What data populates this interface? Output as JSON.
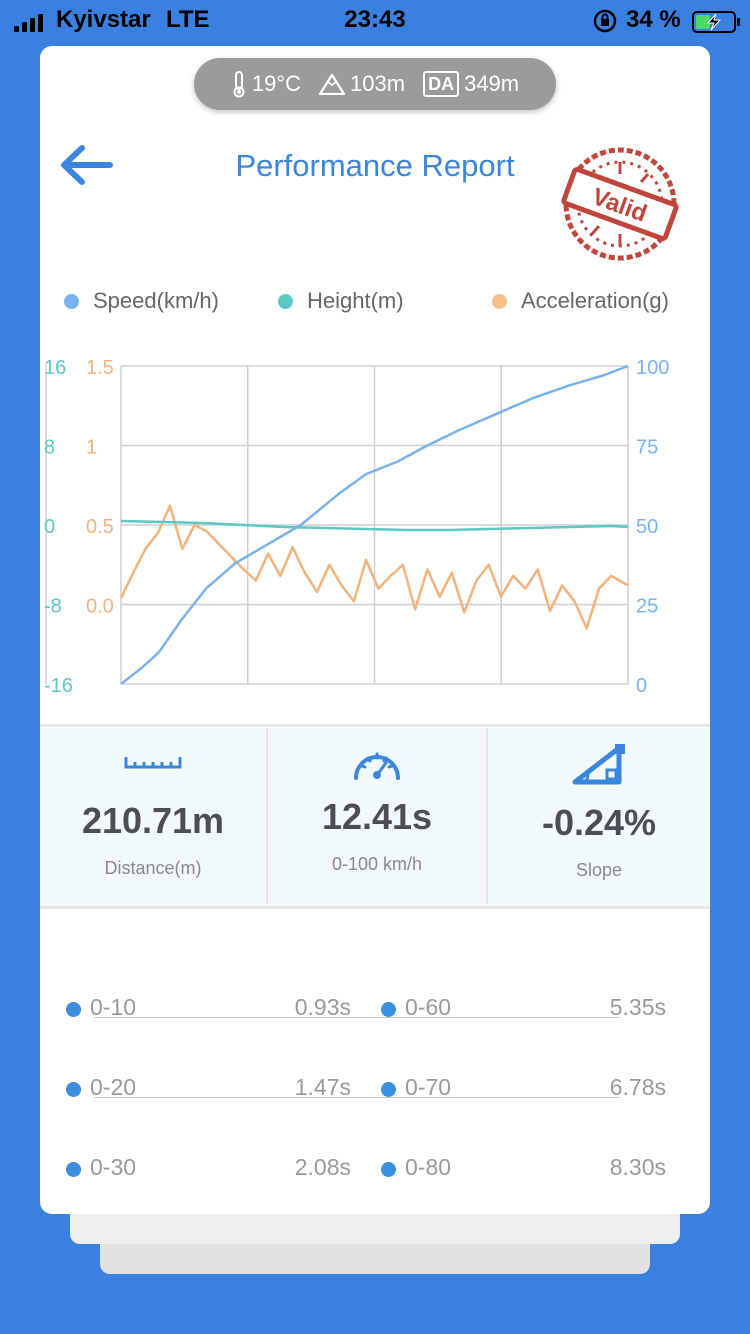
{
  "status_bar": {
    "carrier": "Kyivstar",
    "network": "LTE",
    "time": "23:43",
    "battery": "34 %"
  },
  "weather": {
    "temperature": "19°C",
    "altitude": "103m",
    "da_label": "DA",
    "density_altitude": "349m"
  },
  "header": {
    "title": "Performance Report",
    "stamp_text": "Valid"
  },
  "legend": [
    {
      "label": "Speed(km/h)",
      "color": "#7ab3ec"
    },
    {
      "label": "Height(m)",
      "color": "#5cc8c4"
    },
    {
      "label": "Acceleration(g)",
      "color": "#f2c08d"
    }
  ],
  "chart_data": {
    "type": "line",
    "left_axes": [
      {
        "series": "Height(m)",
        "color": "#5cc8c4",
        "ticks": [
          "16",
          "8",
          "0",
          "-8",
          "-16"
        ],
        "ylim": [
          -16,
          16
        ]
      },
      {
        "series": "Acceleration(g)",
        "color": "#f2b37d",
        "ticks": [
          "1.5",
          "1",
          "0.5",
          "0.0"
        ],
        "ylim": [
          -0.5,
          1.5
        ]
      }
    ],
    "right_axis": {
      "series": "Speed(km/h)",
      "color": "#7ab3ec",
      "ticks": [
        "100",
        "75",
        "50",
        "25",
        "0"
      ],
      "ylim": [
        0,
        100
      ]
    },
    "grid": true,
    "series": [
      {
        "name": "Speed(km/h)",
        "color": "#7ab3ec",
        "x_time_s": [
          0,
          0.5,
          0.93,
          1.47,
          2.08,
          2.8,
          3.6,
          4.4,
          5.35,
          6.0,
          6.78,
          7.5,
          8.3,
          9.2,
          10.1,
          11.0,
          11.8,
          12.41
        ],
        "values": [
          0,
          5,
          10,
          20,
          30,
          38,
          44,
          50,
          60,
          66,
          70,
          75,
          80,
          85,
          90,
          94,
          97,
          100
        ]
      },
      {
        "name": "Height(m)",
        "color": "#5cc8c4",
        "x_time_s": [
          0,
          1,
          2,
          3,
          4,
          5,
          6,
          7,
          8,
          9,
          10,
          11,
          12,
          12.41
        ],
        "values": [
          0.4,
          0.3,
          0.2,
          0.0,
          -0.2,
          -0.3,
          -0.4,
          -0.5,
          -0.5,
          -0.4,
          -0.3,
          -0.2,
          -0.1,
          -0.2
        ]
      },
      {
        "name": "Acceleration(g)",
        "color": "#f2b37d",
        "x_time_s": [
          0,
          0.3,
          0.6,
          0.9,
          1.2,
          1.5,
          1.8,
          2.1,
          2.4,
          2.7,
          3.0,
          3.3,
          3.6,
          3.9,
          4.2,
          4.5,
          4.8,
          5.1,
          5.4,
          5.7,
          6.0,
          6.3,
          6.6,
          6.9,
          7.2,
          7.5,
          7.8,
          8.1,
          8.4,
          8.7,
          9.0,
          9.3,
          9.6,
          9.9,
          10.2,
          10.5,
          10.8,
          11.1,
          11.4,
          11.7,
          12.0,
          12.41
        ],
        "values": [
          0.04,
          0.2,
          0.35,
          0.45,
          0.62,
          0.35,
          0.5,
          0.46,
          0.38,
          0.3,
          0.22,
          0.15,
          0.32,
          0.18,
          0.36,
          0.2,
          0.08,
          0.25,
          0.12,
          0.02,
          0.28,
          0.1,
          0.18,
          0.25,
          -0.03,
          0.22,
          0.05,
          0.2,
          -0.05,
          0.15,
          0.25,
          0.05,
          0.18,
          0.1,
          0.22,
          -0.04,
          0.12,
          0.02,
          -0.15,
          0.1,
          0.18,
          0.12
        ]
      }
    ]
  },
  "stats": [
    {
      "icon": "ruler-icon",
      "value": "210.71m",
      "label": "Distance(m)"
    },
    {
      "icon": "speedometer-icon",
      "value": "12.41s",
      "label": "0-100 km/h"
    },
    {
      "icon": "slope-icon",
      "value": "-0.24%",
      "label": "Slope"
    }
  ],
  "times": [
    {
      "left_range": "0-10",
      "left_value": "0.93s",
      "right_range": "0-60",
      "right_value": "5.35s"
    },
    {
      "left_range": "0-20",
      "left_value": "1.47s",
      "right_range": "0-70",
      "right_value": "6.78s"
    },
    {
      "left_range": "0-30",
      "left_value": "2.08s",
      "right_range": "0-80",
      "right_value": "8.30s"
    }
  ]
}
